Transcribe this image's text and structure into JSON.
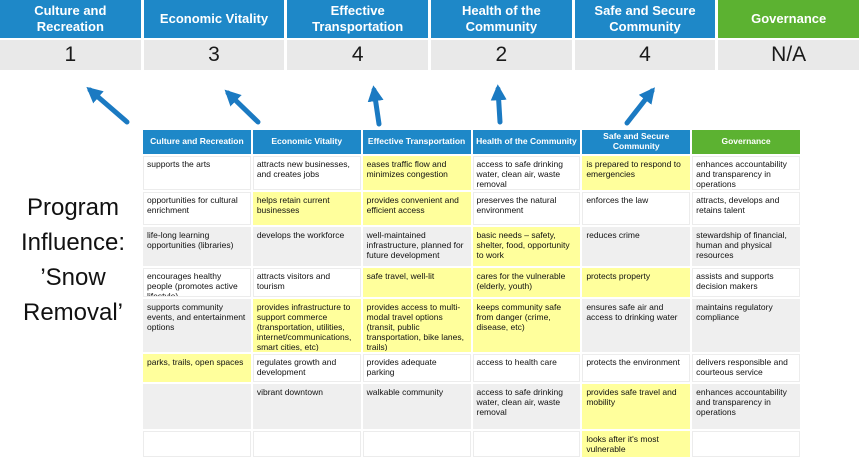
{
  "title": {
    "text": "Program\nInfluence:\n’Snow\nRemoval’"
  },
  "colors": {
    "header_blue": "#1E88C8",
    "governance_green": "#5CB231",
    "highlight_yellow": "#FFFF9C",
    "stripe_gray": "#EFEFEF",
    "score_bg": "#E9E9E9",
    "arrow_blue": "#1B7AC2"
  },
  "scoreboard": {
    "columns": [
      {
        "label": "Culture and Recreation",
        "score": "1",
        "accent": "blue"
      },
      {
        "label": "Economic Vitality",
        "score": "3",
        "accent": "blue"
      },
      {
        "label": "Effective Transportation",
        "score": "4",
        "accent": "blue"
      },
      {
        "label": "Health of the Community",
        "score": "2",
        "accent": "blue"
      },
      {
        "label": "Safe and Secure Community",
        "score": "4",
        "accent": "blue"
      },
      {
        "label": "Governance",
        "score": "N/A",
        "accent": "green"
      }
    ]
  },
  "matrix": {
    "headers": [
      {
        "label": "Culture and Recreation",
        "accent": "blue"
      },
      {
        "label": "Economic Vitality",
        "accent": "blue"
      },
      {
        "label": "Effective Transportation",
        "accent": "blue"
      },
      {
        "label": "Health of the Community",
        "accent": "blue"
      },
      {
        "label": "Safe and Secure Community",
        "accent": "blue"
      },
      {
        "label": "Governance",
        "accent": "green"
      }
    ],
    "rows": [
      {
        "shaded": false,
        "cells": [
          {
            "text": "supports the arts",
            "highlighted": false
          },
          {
            "text": "attracts new businesses, and creates jobs",
            "highlighted": false
          },
          {
            "text": "eases traffic flow and minimizes congestion",
            "highlighted": true
          },
          {
            "text": "access to safe drinking water, clean air, waste removal",
            "highlighted": false
          },
          {
            "text": "is prepared to respond to emergencies",
            "highlighted": true
          },
          {
            "text": "enhances accountability and transparency in operations",
            "highlighted": false
          }
        ]
      },
      {
        "shaded": false,
        "cells": [
          {
            "text": "opportunities for cultural enrichment",
            "highlighted": false
          },
          {
            "text": "helps retain current businesses",
            "highlighted": true
          },
          {
            "text": "provides convenient and efficient access",
            "highlighted": true
          },
          {
            "text": "preserves the natural environment",
            "highlighted": false
          },
          {
            "text": "enforces the law",
            "highlighted": false
          },
          {
            "text": "attracts, develops and retains talent",
            "highlighted": false
          }
        ]
      },
      {
        "shaded": true,
        "cells": [
          {
            "text": "life-long learning opportunities (libraries)",
            "highlighted": false
          },
          {
            "text": "develops the workforce",
            "highlighted": false
          },
          {
            "text": "well-maintained infrastructure, planned for future development",
            "highlighted": false
          },
          {
            "text": "basic needs – safety, shelter, food, opportunity to work",
            "highlighted": true
          },
          {
            "text": "reduces crime",
            "highlighted": false
          },
          {
            "text": "stewardship of financial, human and physical resources",
            "highlighted": false
          }
        ]
      },
      {
        "shaded": false,
        "cells": [
          {
            "text": "encourages healthy people (promotes active lifestyle)",
            "highlighted": false
          },
          {
            "text": "attracts visitors and tourism",
            "highlighted": false
          },
          {
            "text": "safe travel, well-lit",
            "highlighted": true
          },
          {
            "text": "cares for the vulnerable (elderly, youth)",
            "highlighted": true
          },
          {
            "text": "protects property",
            "highlighted": true
          },
          {
            "text": "assists and supports decision makers",
            "highlighted": false
          }
        ]
      },
      {
        "shaded": true,
        "cells": [
          {
            "text": "supports community events, and entertainment options",
            "highlighted": false
          },
          {
            "text": "provides infrastructure to support commerce (transportation, utilities, internet/communications, smart cities, etc)",
            "highlighted": true
          },
          {
            "text": "provides access to multi-modal travel options (transit, public transportation, bike lanes, trails)",
            "highlighted": true
          },
          {
            "text": "keeps community safe from danger (crime, disease, etc)",
            "highlighted": true
          },
          {
            "text": "ensures safe air and access to drinking water",
            "highlighted": false
          },
          {
            "text": "maintains regulatory compliance",
            "highlighted": false
          }
        ]
      },
      {
        "shaded": false,
        "cells": [
          {
            "text": "parks, trails, open spaces",
            "highlighted": true
          },
          {
            "text": "regulates growth and development",
            "highlighted": false
          },
          {
            "text": "provides adequate parking",
            "highlighted": false
          },
          {
            "text": "access to health care",
            "highlighted": false
          },
          {
            "text": "protects the environment",
            "highlighted": false
          },
          {
            "text": "delivers responsible and courteous service",
            "highlighted": false
          }
        ]
      },
      {
        "shaded": true,
        "cells": [
          {
            "text": "",
            "highlighted": false
          },
          {
            "text": "vibrant downtown",
            "highlighted": false
          },
          {
            "text": "walkable community",
            "highlighted": false
          },
          {
            "text": "access to safe drinking water, clean air, waste removal",
            "highlighted": false
          },
          {
            "text": "provides safe travel and mobility",
            "highlighted": true
          },
          {
            "text": "enhances accountability and transparency in operations",
            "highlighted": false
          }
        ]
      },
      {
        "shaded": false,
        "cells": [
          {
            "text": "",
            "highlighted": false
          },
          {
            "text": "",
            "highlighted": false
          },
          {
            "text": "",
            "highlighted": false
          },
          {
            "text": "",
            "highlighted": false
          },
          {
            "text": "looks after it's most vulnerable",
            "highlighted": true
          },
          {
            "text": "",
            "highlighted": false
          }
        ]
      }
    ]
  }
}
